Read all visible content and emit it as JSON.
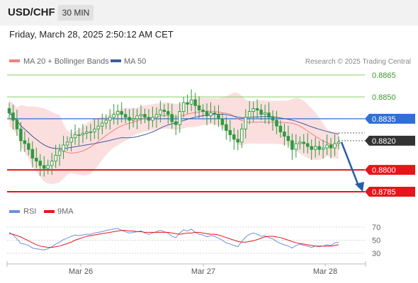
{
  "header": {
    "symbol": "USD/CHF",
    "timeframe": "30 MIN",
    "timestamp": "Friday, March 28, 2025 2:50:12 AM CET"
  },
  "colors": {
    "candle": "#2e9a3f",
    "bb_fill": "#fad4d4",
    "ma20": "#f08080",
    "ma50": "#3d5d9f",
    "resistance": "#88cc66",
    "pivot": "#2f6fd6",
    "support": "#e8141a",
    "last": "#333333",
    "rsi": "#6b8fe0",
    "rsi_ma": "#e8141a",
    "arrow": "#2a5caa"
  },
  "chart_data": [
    {
      "type": "candlestick",
      "legend": [
        {
          "label": "MA 20 + Bollinger Bands",
          "color": "#f08080"
        },
        {
          "label": "MA 50",
          "color": "#3d5d9f"
        }
      ],
      "legend_right": "Research © 2025 Trading Central",
      "x_labels": [
        "Mar 26",
        "Mar 27",
        "Mar 28"
      ],
      "ylim": [
        0.8779,
        0.8875
      ],
      "levels": [
        {
          "value": 0.8865,
          "label": "0.8865",
          "kind": "resistance"
        },
        {
          "value": 0.885,
          "label": "0.8850",
          "kind": "resistance"
        },
        {
          "value": 0.8835,
          "label": "0.8835",
          "kind": "pivot"
        },
        {
          "value": 0.882,
          "label": "0.8820",
          "kind": "last"
        },
        {
          "value": 0.88,
          "label": "0.8800",
          "kind": "support"
        },
        {
          "value": 0.8785,
          "label": "0.8785",
          "kind": "support"
        }
      ],
      "forecast": {
        "from": 0.8819,
        "to": 0.8785
      },
      "close": [
        0.8839,
        0.8834,
        0.8828,
        0.882,
        0.8818,
        0.8814,
        0.8808,
        0.8806,
        0.8803,
        0.8801,
        0.8803,
        0.8806,
        0.881,
        0.8813,
        0.8817,
        0.8819,
        0.8822,
        0.8824,
        0.8824,
        0.8825,
        0.8826,
        0.8826,
        0.8828,
        0.883,
        0.8832,
        0.8834,
        0.8836,
        0.8838,
        0.884,
        0.8838,
        0.8836,
        0.8834,
        0.8835,
        0.8837,
        0.8838,
        0.8836,
        0.8834,
        0.8836,
        0.8838,
        0.8841,
        0.884,
        0.8838,
        0.8833,
        0.8831,
        0.884,
        0.8846,
        0.8845,
        0.8848,
        0.8844,
        0.8841,
        0.884,
        0.8837,
        0.8839,
        0.8838,
        0.8835,
        0.8831,
        0.8827,
        0.8824,
        0.8821,
        0.8819,
        0.8828,
        0.8836,
        0.884,
        0.8842,
        0.8841,
        0.8838,
        0.8839,
        0.8836,
        0.8834,
        0.883,
        0.8826,
        0.8823,
        0.882,
        0.8814,
        0.8818,
        0.8819,
        0.8818,
        0.8816,
        0.8814,
        0.8816,
        0.8814,
        0.8815,
        0.8817,
        0.8815,
        0.8818,
        0.8819
      ],
      "panel": {
        "legend": [
          {
            "label": "RSI",
            "color": "#6b8fe0"
          },
          {
            "label": "9MA",
            "color": "#e8141a"
          }
        ],
        "ticks": [
          "70",
          "50",
          "30"
        ],
        "ylim": [
          20,
          80
        ],
        "rsi": [
          62,
          58,
          52,
          45,
          44,
          42,
          38,
          37,
          36,
          35,
          37,
          40,
          44,
          47,
          51,
          53,
          56,
          58,
          57,
          58,
          59,
          59,
          61,
          62,
          63,
          65,
          66,
          67,
          68,
          65,
          63,
          61,
          62,
          63,
          64,
          61,
          59,
          61,
          63,
          65,
          63,
          61,
          56,
          54,
          61,
          66,
          64,
          67,
          62,
          59,
          58,
          55,
          57,
          56,
          53,
          50,
          46,
          44,
          42,
          40,
          48,
          55,
          59,
          61,
          59,
          56,
          57,
          54,
          52,
          48,
          45,
          43,
          41,
          38,
          42,
          44,
          42,
          41,
          39,
          41,
          40,
          41,
          43,
          42,
          46,
          47
        ],
        "rsi_ma": [
          60,
          59,
          57,
          55,
          52,
          49,
          46,
          43,
          41,
          40,
          39,
          39,
          40,
          41,
          43,
          45,
          47,
          50,
          52,
          54,
          56,
          57,
          58,
          59,
          60,
          61,
          62,
          63,
          64,
          65,
          65,
          64,
          64,
          63,
          63,
          62,
          62,
          62,
          62,
          62,
          62,
          62,
          61,
          60,
          59,
          60,
          61,
          61,
          62,
          62,
          61,
          60,
          59,
          59,
          58,
          56,
          54,
          52,
          50,
          48,
          47,
          47,
          48,
          49,
          51,
          53,
          55,
          56,
          56,
          55,
          54,
          52,
          50,
          48,
          46,
          45,
          44,
          43,
          42,
          41,
          41,
          41,
          41,
          41,
          42,
          43
        ]
      }
    }
  ]
}
